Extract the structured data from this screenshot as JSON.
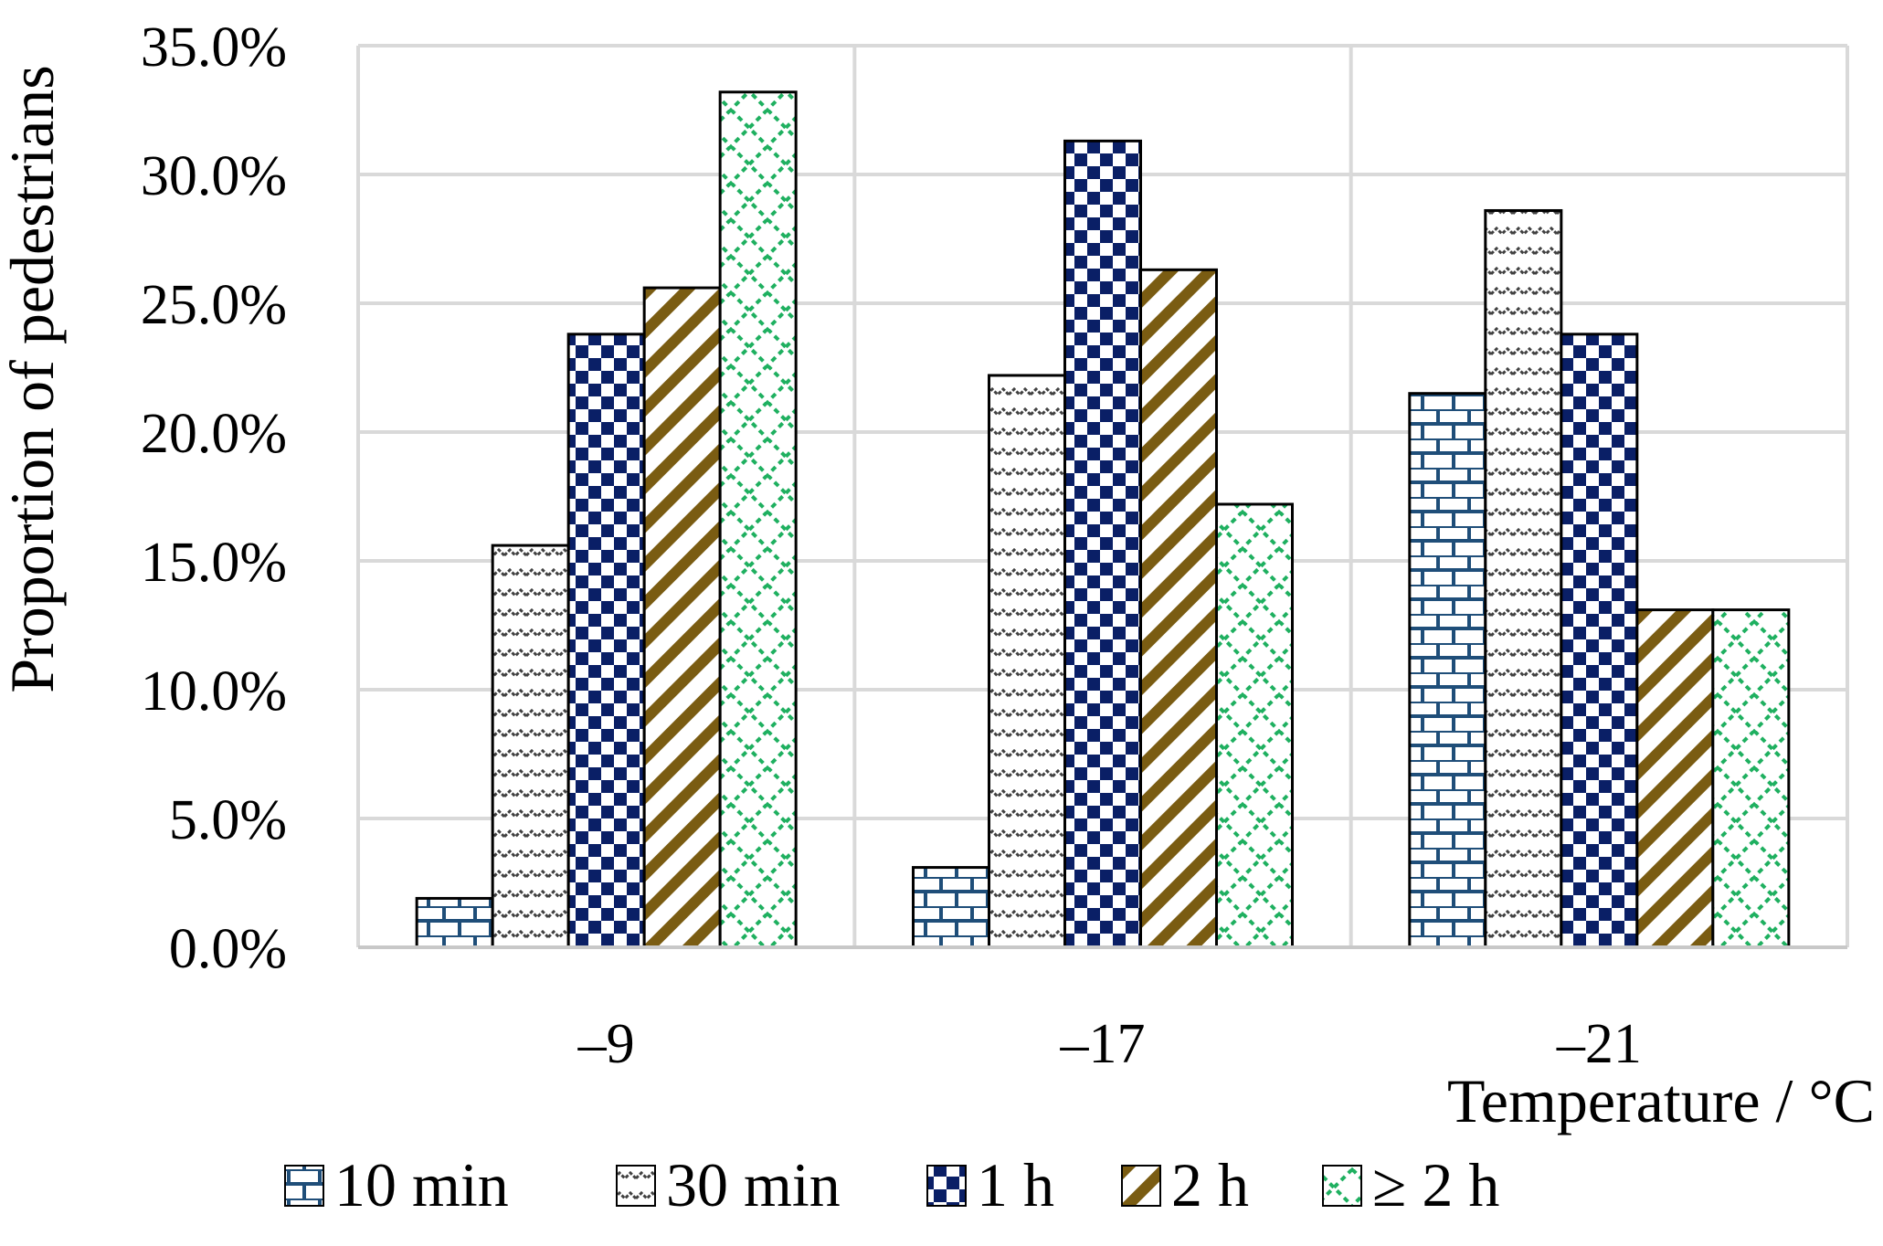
{
  "chart_data": {
    "type": "bar",
    "title": "",
    "xlabel": "Temperature / °C",
    "ylabel": "Proportion of pedestrians",
    "categories": [
      "–9",
      "–17",
      "–21"
    ],
    "ylim": [
      0,
      35
    ],
    "yticks": [
      0,
      5,
      10,
      15,
      20,
      25,
      30,
      35
    ],
    "ytick_labels": [
      "0.0%",
      "5.0%",
      "10.0%",
      "15.0%",
      "20.0%",
      "25.0%",
      "30.0%",
      "35.0%"
    ],
    "grid": true,
    "legend_position": "bottom",
    "series": [
      {
        "name": "10 min",
        "key": "s10min",
        "pattern": "brick",
        "color": "#1f4e79",
        "values": [
          1.9,
          3.1,
          21.5
        ]
      },
      {
        "name": "30 min",
        "key": "s30min",
        "pattern": "wave",
        "color": "#404040",
        "values": [
          15.6,
          22.2,
          28.6
        ]
      },
      {
        "name": "1 h",
        "key": "s1h",
        "pattern": "checker",
        "color": "#0a1f66",
        "values": [
          23.8,
          31.3,
          23.8
        ]
      },
      {
        "name": "2 h",
        "key": "s2h",
        "pattern": "diagonal",
        "color": "#7a5c12",
        "values": [
          25.6,
          26.3,
          13.1
        ]
      },
      {
        "name": "≥ 2 h",
        "key": "sge2h",
        "pattern": "lattice",
        "color": "#1fb060",
        "values": [
          33.2,
          17.2,
          13.1
        ]
      }
    ]
  }
}
